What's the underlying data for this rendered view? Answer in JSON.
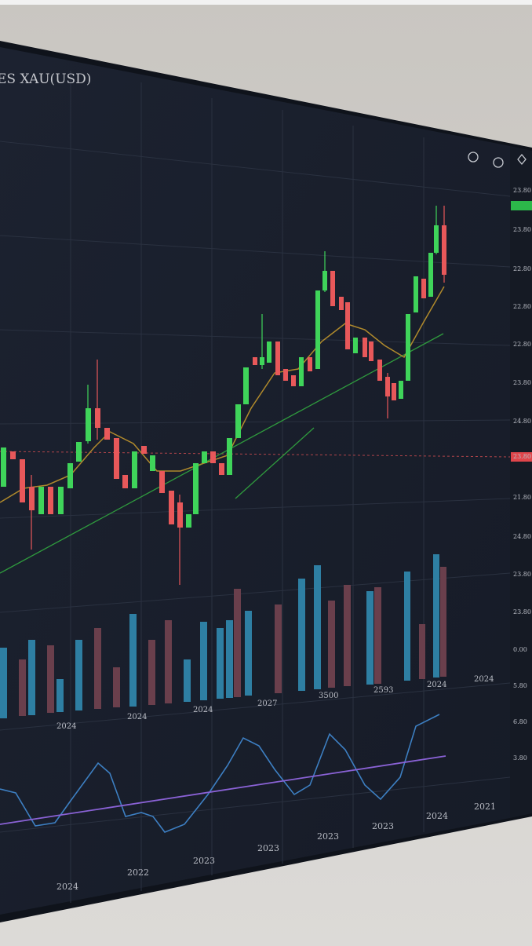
{
  "screen": {
    "title": "ES XAU(USD)",
    "price_labels": [
      "23.80",
      "23.80",
      "22.80",
      "22.80",
      "22.80",
      "23.80",
      "24.80",
      "23.80",
      "21.80",
      "24.80",
      "23.80",
      "23.80",
      "0.00",
      "5.80",
      "6.80",
      "3.80"
    ],
    "volume_axis_labels": [
      "2024",
      "2024",
      "2024",
      "2027",
      "3500",
      "2593",
      "2024",
      "2024"
    ],
    "oscillator_axis_labels": [
      "2024",
      "2022",
      "2023",
      "2023",
      "2023",
      "2023",
      "2024",
      "2021"
    ]
  }
}
